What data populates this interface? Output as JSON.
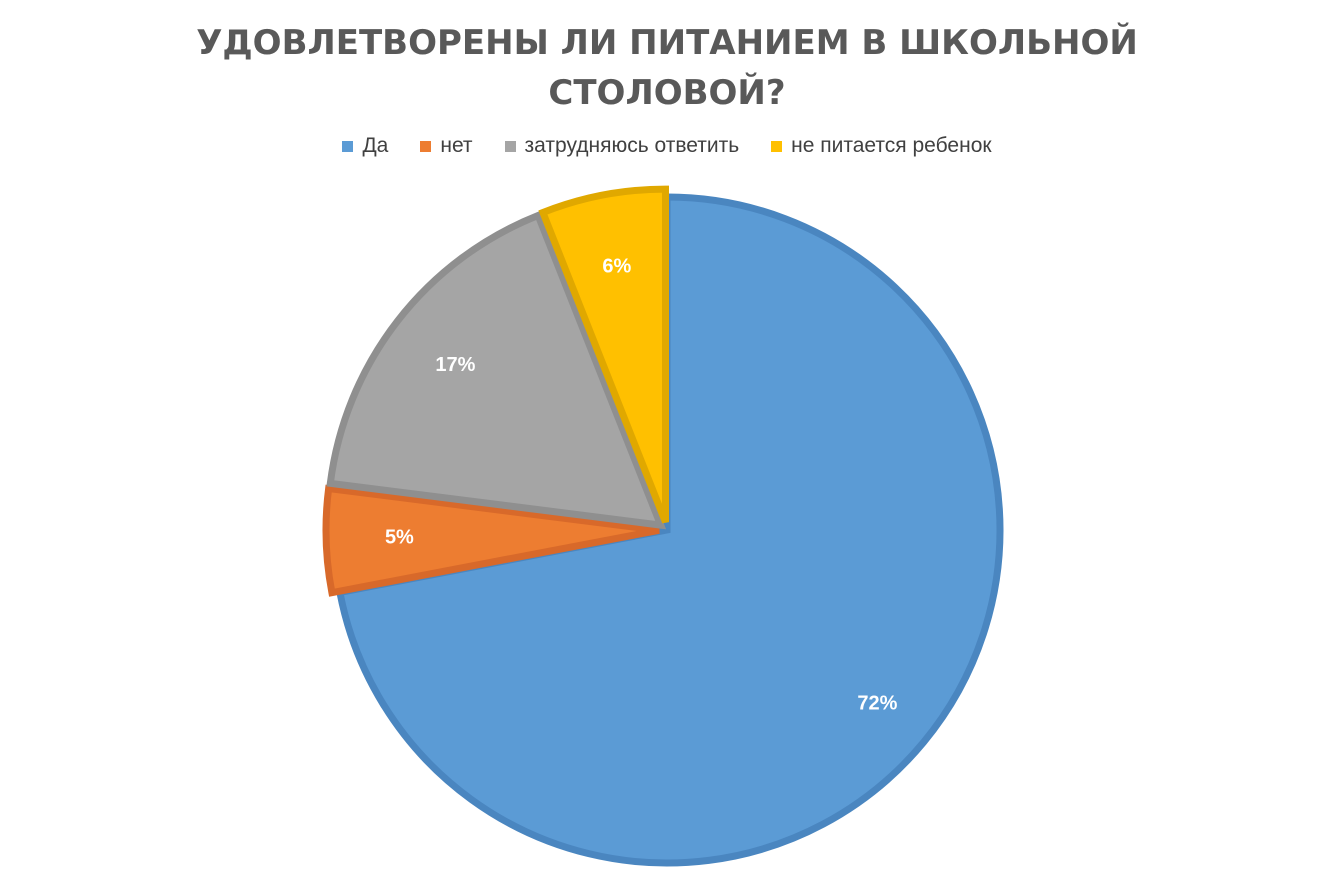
{
  "chart_data": {
    "type": "pie",
    "title": "УДОВЛЕТВОРЕНЫ ЛИ ПИТАНИЕМ В ШКОЛЬНОЙ СТОЛОВОЙ?",
    "title_lines": [
      "УДОВЛЕТВОРЕНЫ ЛИ ПИТАНИЕМ В ШКОЛЬНОЙ",
      "СТОЛОВОЙ?"
    ],
    "legend_position": "top",
    "slices": [
      {
        "label": "Да",
        "value": 72,
        "display": "72%",
        "color": "#5B9BD5",
        "border": "#4A86C0"
      },
      {
        "label": "нет",
        "value": 5,
        "display": "5%",
        "color": "#ED7D31",
        "border": "#D8692A"
      },
      {
        "label": "затрудняюсь ответить",
        "value": 17,
        "display": "17%",
        "color": "#A5A5A5",
        "border": "#8F8F8F"
      },
      {
        "label": "не питается ребенок",
        "value": 6,
        "display": "6%",
        "color": "#FFC000",
        "border": "#E0A800"
      }
    ]
  }
}
